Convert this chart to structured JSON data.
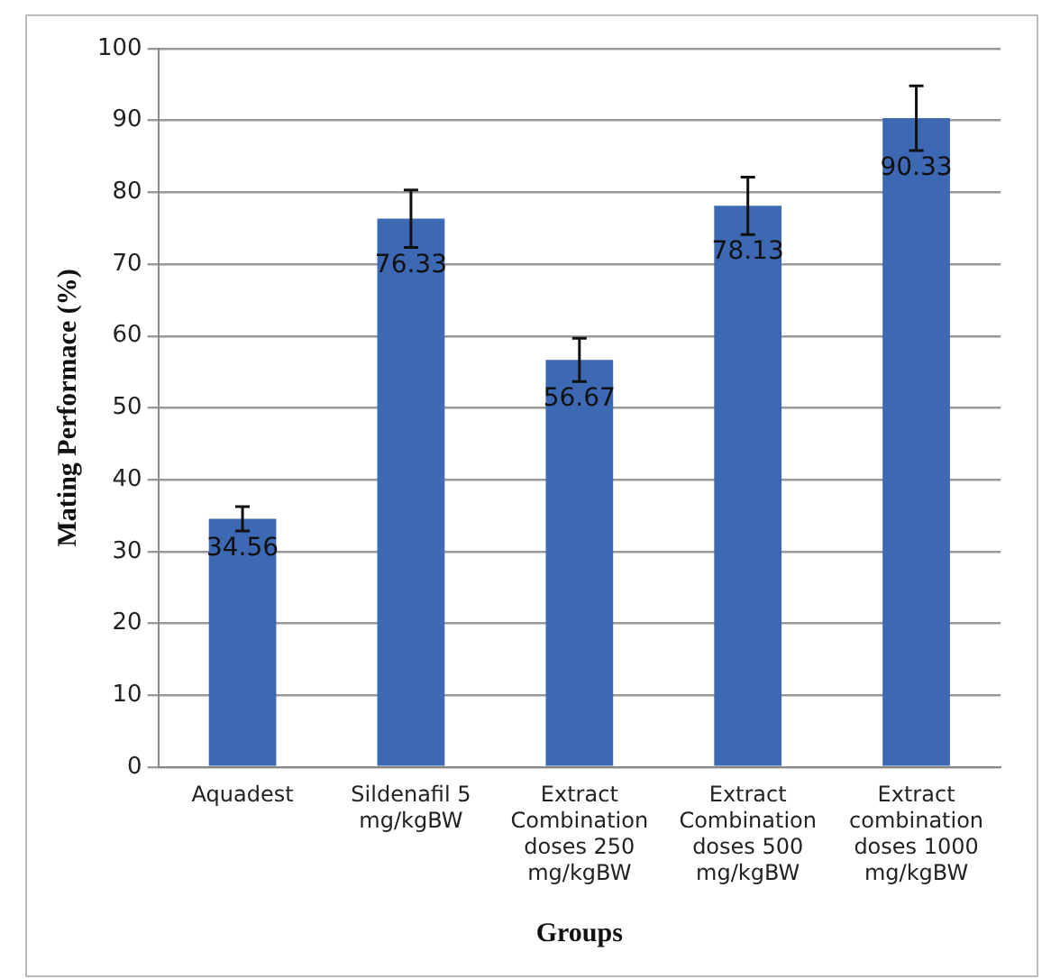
{
  "chart_data": {
    "type": "bar",
    "xlabel": "Groups",
    "ylabel": "Mating Performace (%)",
    "categories": [
      "Aquadest",
      "Sildenafil 5 mg/kgBW",
      "Extract Combination doses 250 mg/kgBW",
      "Extract Combination doses 500 mg/kgBW",
      "Extract combination doses 1000 mg/kgBW"
    ],
    "values": [
      34.56,
      76.33,
      56.67,
      78.13,
      90.33
    ],
    "errors": [
      1.7,
      4,
      3,
      4,
      4.5
    ],
    "color": "#3d68b4",
    "data_labels": true,
    "grid": "y",
    "ylim": [
      0,
      100
    ],
    "yticks": [
      0,
      10,
      20,
      30,
      40,
      50,
      60,
      70,
      80,
      90,
      100
    ]
  }
}
